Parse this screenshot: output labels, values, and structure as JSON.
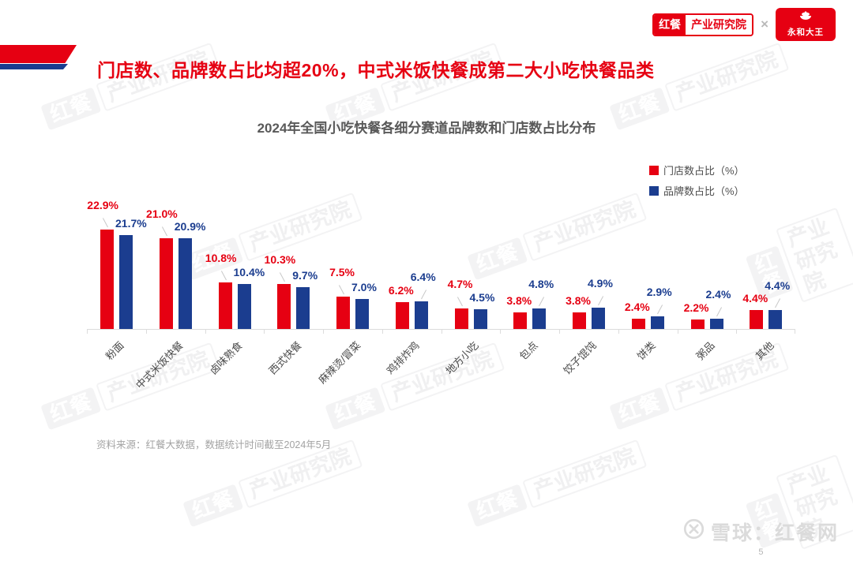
{
  "page": {
    "title": "门店数、品牌数占比均超20%，中式米饭快餐成第二大小吃快餐品类",
    "source_note": "资料来源：红餐大数据，数据统计时间截至2024年5月",
    "footer_brand": "雪球：红餐网",
    "page_number": "5",
    "watermark": {
      "primary": "红餐",
      "secondary": "产业研究院"
    }
  },
  "header_logos": {
    "hongcan_primary": "红餐",
    "hongcan_secondary": "产业研究院",
    "separator": "×",
    "partner": "永和大王"
  },
  "colors": {
    "brand_red": "#e60012",
    "navy_blue": "#1b3d8f",
    "title_red": "#e60012"
  },
  "chart_data": {
    "type": "bar",
    "title": "2024年全国小吃快餐各细分赛道品牌数和门店数占比分布",
    "categories": [
      "粉面",
      "中式米饭快餐",
      "卤味熟食",
      "西式快餐",
      "麻辣烫/冒菜",
      "鸡排炸鸡",
      "地方小吃",
      "包点",
      "饺子馄饨",
      "饼类",
      "粥品",
      "其他"
    ],
    "series": [
      {
        "name": "门店数占比（%）",
        "color": "#e60012",
        "values": [
          22.9,
          21.0,
          10.8,
          10.3,
          7.5,
          6.2,
          4.7,
          3.8,
          3.8,
          2.4,
          2.2,
          4.4
        ]
      },
      {
        "name": "品牌数占比（%）",
        "color": "#1b3d8f",
        "values": [
          21.7,
          20.9,
          10.4,
          9.7,
          7.0,
          6.4,
          4.5,
          4.8,
          4.9,
          2.9,
          2.4,
          4.4
        ]
      }
    ],
    "unit": "%",
    "ylim": [
      0,
      25
    ],
    "grid": false,
    "legend_position": "top-right"
  }
}
